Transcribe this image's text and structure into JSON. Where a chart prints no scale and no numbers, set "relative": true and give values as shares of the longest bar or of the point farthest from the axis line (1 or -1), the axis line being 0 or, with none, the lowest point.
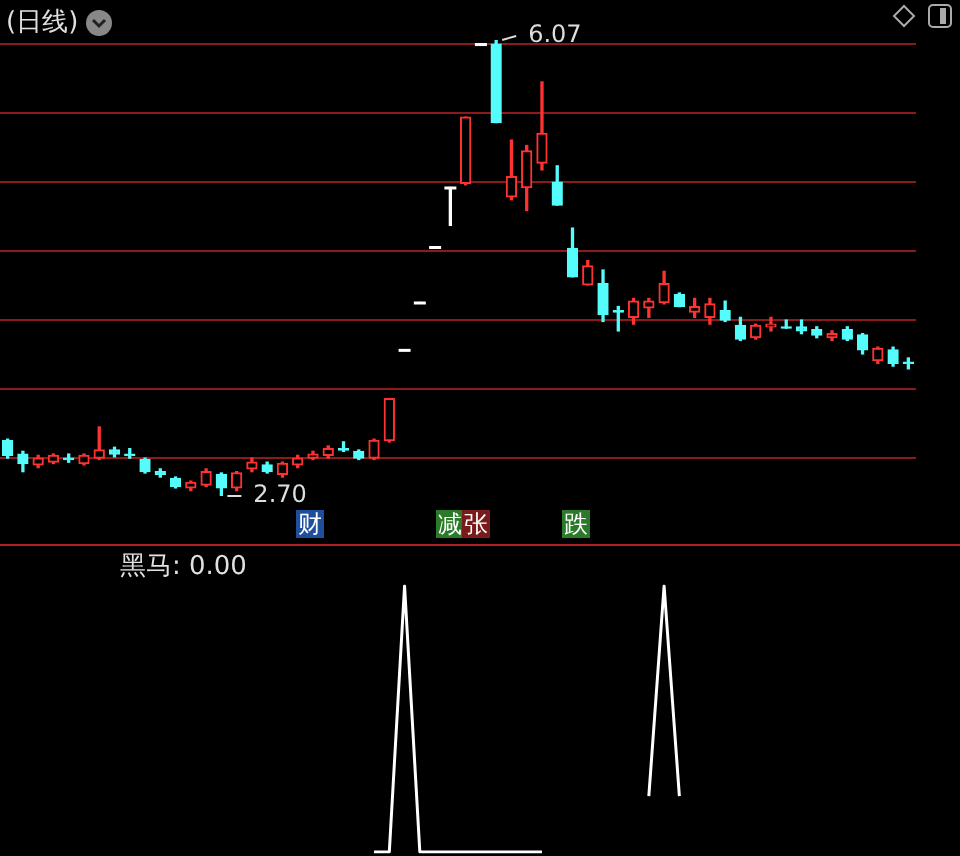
{
  "chart_data": [
    {
      "type": "candlestick",
      "title": "(日线)",
      "categories": [
        null,
        null,
        null,
        null,
        null,
        null,
        null,
        null,
        null,
        null,
        null,
        null,
        null,
        null,
        null,
        null,
        null,
        null,
        null,
        null,
        null,
        null,
        null,
        null,
        null,
        null,
        null,
        null,
        null,
        null,
        null,
        null,
        null,
        null,
        null,
        null,
        null,
        null,
        null,
        null,
        null,
        null,
        null,
        null,
        null,
        null,
        null,
        null,
        null,
        null,
        null,
        null,
        null,
        null,
        null,
        null,
        null,
        null,
        null,
        null
      ],
      "ohlc": [
        [
          3.11,
          3.12,
          2.98,
          3.0
        ],
        [
          3.01,
          3.03,
          2.88,
          2.94
        ],
        [
          2.93,
          3.0,
          2.91,
          2.98
        ],
        [
          2.95,
          3.01,
          2.94,
          3.0
        ],
        [
          2.98,
          3.01,
          2.95,
          2.97
        ],
        [
          2.94,
          3.01,
          2.93,
          3.0
        ],
        [
          2.98,
          3.21,
          2.97,
          3.04
        ],
        [
          3.04,
          3.06,
          2.99,
          3.01
        ],
        [
          3.01,
          3.05,
          2.98,
          3.0
        ],
        [
          2.97,
          2.98,
          2.87,
          2.88
        ],
        [
          2.88,
          2.9,
          2.84,
          2.86
        ],
        [
          2.83,
          2.84,
          2.76,
          2.77
        ],
        [
          2.76,
          2.81,
          2.74,
          2.8
        ],
        [
          2.78,
          2.9,
          2.77,
          2.88
        ],
        [
          2.86,
          2.87,
          2.7,
          2.76
        ],
        [
          2.76,
          2.88,
          2.74,
          2.87
        ],
        [
          2.9,
          2.98,
          2.88,
          2.95
        ],
        [
          2.93,
          2.95,
          2.87,
          2.88
        ],
        [
          2.86,
          2.95,
          2.84,
          2.94
        ],
        [
          2.93,
          3.0,
          2.91,
          2.98
        ],
        [
          2.98,
          3.03,
          2.97,
          3.01
        ],
        [
          3.0,
          3.07,
          2.98,
          3.05
        ],
        [
          3.05,
          3.1,
          3.03,
          3.04
        ],
        [
          3.03,
          3.04,
          2.97,
          2.98
        ],
        [
          2.98,
          3.12,
          2.97,
          3.11
        ],
        [
          3.11,
          3.42,
          3.1,
          3.42
        ],
        [
          3.78,
          3.78,
          3.78,
          3.78
        ],
        [
          4.13,
          4.13,
          4.13,
          4.13
        ],
        [
          4.54,
          4.54,
          4.54,
          4.54
        ],
        [
          4.98,
          4.98,
          4.7,
          4.98
        ],
        [
          5.01,
          5.5,
          5.0,
          5.5
        ],
        [
          6.04,
          6.04,
          6.04,
          6.04
        ],
        [
          6.04,
          6.07,
          5.46,
          5.46
        ],
        [
          4.91,
          5.33,
          4.89,
          5.06
        ],
        [
          4.98,
          5.29,
          4.81,
          5.25
        ],
        [
          5.16,
          5.76,
          5.11,
          5.38
        ],
        [
          5.02,
          5.14,
          4.85,
          4.85
        ],
        [
          4.53,
          4.68,
          4.32,
          4.32
        ],
        [
          4.26,
          4.44,
          4.26,
          4.4
        ],
        [
          4.27,
          4.37,
          3.99,
          4.04
        ],
        [
          4.07,
          4.1,
          3.92,
          4.06
        ],
        [
          4.02,
          4.16,
          3.97,
          4.14
        ],
        [
          4.09,
          4.16,
          4.02,
          4.14
        ],
        [
          4.13,
          4.36,
          4.12,
          4.27
        ],
        [
          4.19,
          4.2,
          4.1,
          4.1
        ],
        [
          4.06,
          4.16,
          4.02,
          4.1
        ],
        [
          4.02,
          4.16,
          3.97,
          4.12
        ],
        [
          4.07,
          4.14,
          3.99,
          4.0
        ],
        [
          3.96,
          4.02,
          3.85,
          3.86
        ],
        [
          3.87,
          3.97,
          3.86,
          3.96
        ],
        [
          3.95,
          4.02,
          3.92,
          3.97
        ],
        [
          3.95,
          4.0,
          3.94,
          3.94
        ],
        [
          3.95,
          4.0,
          3.9,
          3.92
        ],
        [
          3.93,
          3.95,
          3.87,
          3.89
        ],
        [
          3.87,
          3.92,
          3.85,
          3.9
        ],
        [
          3.93,
          3.95,
          3.85,
          3.86
        ],
        [
          3.89,
          3.9,
          3.75,
          3.78
        ],
        [
          3.7,
          3.8,
          3.68,
          3.79
        ],
        [
          3.78,
          3.8,
          3.66,
          3.68
        ],
        [
          3.69,
          3.72,
          3.64,
          3.68
        ]
      ],
      "colors": [
        "#54fcfc",
        "#54fcfc",
        "#ff3232",
        "#ff3232",
        "#54fcfc",
        "#ff3232",
        "#ff3232",
        "#54fcfc",
        "#54fcfc",
        "#54fcfc",
        "#54fcfc",
        "#54fcfc",
        "#ff3232",
        "#ff3232",
        "#54fcfc",
        "#ff3232",
        "#ff3232",
        "#54fcfc",
        "#ff3232",
        "#ff3232",
        "#ff3232",
        "#ff3232",
        "#54fcfc",
        "#54fcfc",
        "#ff3232",
        "#ff3232",
        "#ffffff",
        "#ffffff",
        "#ffffff",
        "#ffffff",
        "#ff3232",
        "#ffffff",
        "#54fcfc",
        "#ff3232",
        "#ff3232",
        "#ff3232",
        "#54fcfc",
        "#54fcfc",
        "#ff3232",
        "#54fcfc",
        "#54fcfc",
        "#ff3232",
        "#ff3232",
        "#ff3232",
        "#54fcfc",
        "#ff3232",
        "#ff3232",
        "#54fcfc",
        "#54fcfc",
        "#ff3232",
        "#ff3232",
        "#54fcfc",
        "#54fcfc",
        "#54fcfc",
        "#ff3232",
        "#54fcfc",
        "#54fcfc",
        "#ff3232",
        "#54fcfc",
        "#54fcfc"
      ],
      "yticks": [
        {
          "value": 2.98,
          "label": null
        },
        {
          "value": 3.49,
          "label": null
        },
        {
          "value": 4.0,
          "label": null
        },
        {
          "value": 4.51,
          "label": null
        },
        {
          "value": 5.02,
          "label": null
        },
        {
          "value": 5.53,
          "label": null
        },
        {
          "value": 6.04,
          "label": null
        }
      ],
      "grid": "y",
      "annotations": [
        "6.07",
        "2.70",
        "财",
        "减",
        "张",
        "跌"
      ]
    },
    {
      "type": "line",
      "title": "黑马: 0.00",
      "relative": true,
      "marker": "none",
      "categories": [
        null,
        null,
        null,
        null,
        null,
        null,
        null,
        null,
        null,
        null,
        null,
        null,
        null,
        null,
        null,
        null,
        null,
        null,
        null,
        null,
        null,
        null,
        null,
        null,
        null,
        null,
        null,
        null,
        null,
        null,
        null,
        null,
        null,
        null,
        null,
        null,
        null,
        null,
        null,
        null,
        null,
        null,
        null,
        null,
        null,
        null,
        null,
        null,
        null,
        null,
        null,
        null,
        null,
        null,
        null,
        null,
        null,
        null,
        null,
        null
      ],
      "series": [
        {
          "color": "#ffffff",
          "values": [
            null,
            null,
            null,
            null,
            null,
            null,
            null,
            null,
            null,
            null,
            null,
            null,
            null,
            null,
            null,
            null,
            null,
            null,
            null,
            null,
            null,
            null,
            null,
            null,
            0,
            0,
            1,
            0,
            0,
            0,
            0,
            0,
            0,
            0,
            0,
            0,
            null,
            null,
            null,
            null,
            null,
            null,
            0.21,
            1,
            0.21,
            null,
            null,
            null,
            null,
            null,
            null,
            null,
            null,
            null,
            null,
            null,
            null,
            null,
            null,
            null
          ]
        }
      ]
    }
  ]
}
